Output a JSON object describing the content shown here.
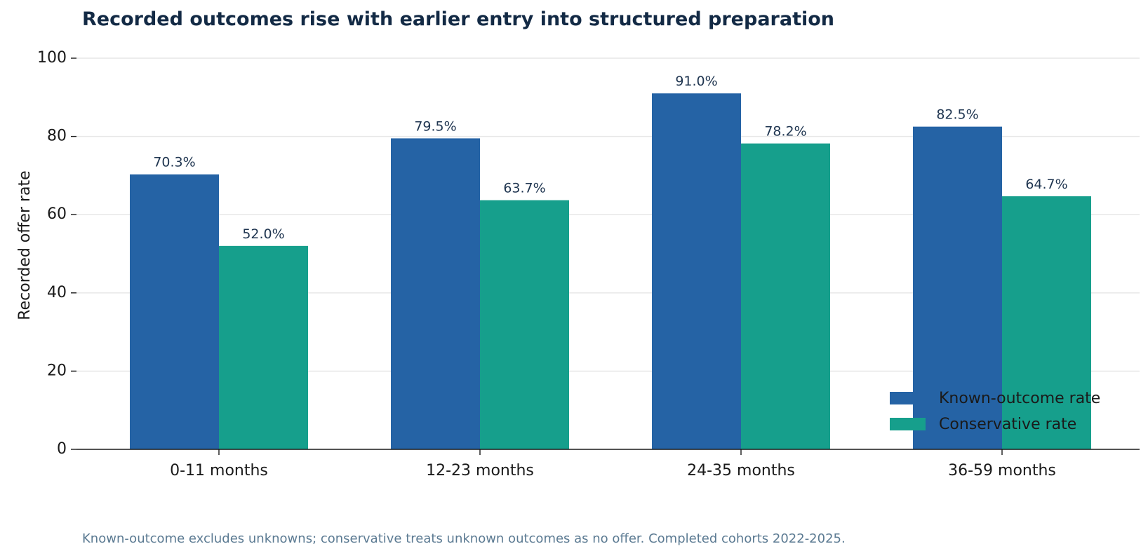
{
  "chart_data": {
    "type": "bar",
    "title": "Recorded outcomes rise with earlier entry into structured preparation",
    "ylabel": "Recorded offer rate",
    "xlabel": "",
    "ylim": [
      0,
      100
    ],
    "yticks": [
      0,
      20,
      40,
      60,
      80,
      100
    ],
    "grid": "horizontal",
    "legend_position": "bottom-right",
    "categories": [
      "0-11 months",
      "12-23 months",
      "24-35 months",
      "36-59 months"
    ],
    "series": [
      {
        "name": "Known-outcome rate",
        "color": "#2563a5",
        "values": [
          70.3,
          79.5,
          91.0,
          82.5
        ],
        "labels": [
          "70.3%",
          "79.5%",
          "91.0%",
          "82.5%"
        ]
      },
      {
        "name": "Conservative rate",
        "color": "#169f8c",
        "values": [
          52.0,
          63.7,
          78.2,
          64.7
        ],
        "labels": [
          "52.0%",
          "63.7%",
          "78.2%",
          "64.7%"
        ]
      }
    ],
    "note": "Known-outcome excludes unknowns; conservative treats unknown outcomes as no offer. Completed cohorts 2022-2025."
  }
}
